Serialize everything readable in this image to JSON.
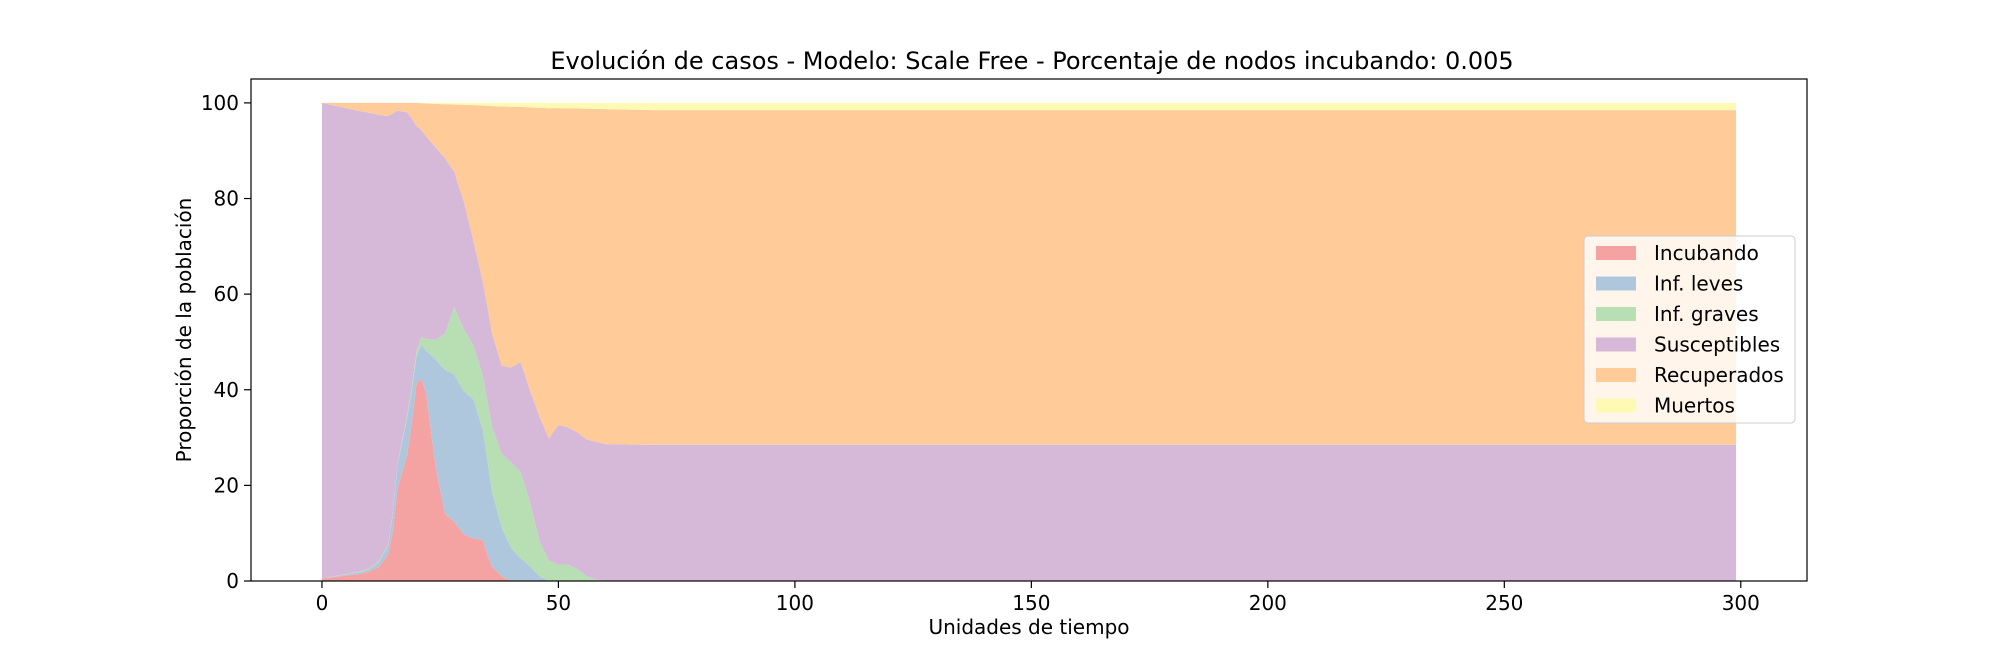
{
  "chart_data": {
    "type": "area",
    "stacked": true,
    "title": "Evolución de casos - Modelo: Scale Free - Porcentaje de nodos incubando: 0.005",
    "xlabel": "Unidades de tiempo",
    "ylabel": "Proporción de la población",
    "xlim": [
      -15,
      314
    ],
    "ylim": [
      0,
      105
    ],
    "xticks": [
      0,
      50,
      100,
      150,
      200,
      250,
      300
    ],
    "yticks": [
      0,
      20,
      40,
      60,
      80,
      100
    ],
    "x_end": 299,
    "legend_position": "center-right",
    "colors": {
      "Incubando": "#f4a2a2",
      "Inf. leves": "#afc7dd",
      "Inf. graves": "#b8dfb4",
      "Susceptibles": "#d6b8d9",
      "Recuperados": "#ffcb99",
      "Muertos": "#fffab3"
    },
    "series": [
      {
        "name": "Incubando",
        "x": [
          0,
          4,
          8,
          10,
          12,
          14,
          15,
          16,
          18,
          20,
          21,
          22,
          24,
          26,
          28,
          30,
          32,
          34,
          35,
          36,
          38,
          40
        ],
        "values": [
          0.5,
          1,
          1.5,
          2,
          3,
          6,
          12,
          24,
          33,
          43,
          45,
          40,
          24,
          15,
          14,
          12,
          11,
          10,
          6,
          3,
          1,
          0
        ]
      },
      {
        "name": "Inf. leves",
        "x": [
          0,
          10,
          12,
          14,
          16,
          18,
          20,
          22,
          24,
          26,
          28,
          30,
          32,
          34,
          36,
          38,
          40,
          42,
          44,
          46,
          48
        ],
        "values": [
          0,
          0.5,
          1,
          2,
          6,
          10,
          6,
          9,
          22,
          32,
          35,
          37,
          36,
          27,
          16,
          10,
          7,
          5,
          3,
          1,
          0
        ]
      },
      {
        "name": "Inf. graves",
        "x": [
          0,
          16,
          20,
          24,
          26,
          28,
          30,
          32,
          34,
          36,
          38,
          40,
          42,
          44,
          46,
          48,
          50,
          52,
          54,
          56,
          58,
          60
        ],
        "values": [
          0,
          0.3,
          1,
          4,
          8,
          16,
          16,
          14,
          13,
          14,
          15,
          18,
          19,
          13,
          7,
          4,
          3.5,
          3.5,
          2.5,
          1,
          0.3,
          0
        ]
      },
      {
        "name": "Susceptibles",
        "x": [
          0,
          14,
          16,
          18,
          20,
          22,
          24,
          26,
          28,
          30,
          32,
          34,
          36,
          38,
          40,
          42,
          44,
          46,
          48,
          50,
          52,
          54,
          56,
          58,
          60,
          65,
          70,
          299
        ],
        "values": [
          99.5,
          97,
          91,
          80,
          49,
          43,
          40,
          39,
          32,
          33,
          27,
          23,
          20,
          18,
          20,
          24,
          23,
          25,
          24,
          29.5,
          29,
          28.7,
          28.5,
          28.8,
          28.6,
          28.5,
          28.5,
          28.5
        ]
      },
      {
        "name": "Recuperados",
        "x": [
          0,
          14,
          16,
          18,
          20,
          22,
          24,
          26,
          28,
          30,
          32,
          34,
          36,
          38,
          40,
          42,
          44,
          46,
          48,
          50,
          52,
          54,
          56,
          58,
          60,
          65,
          70,
          299
        ],
        "values": [
          0,
          3,
          2,
          2.5,
          5,
          7,
          9,
          12,
          16,
          25,
          35,
          43,
          49,
          53,
          55,
          56,
          58,
          62,
          65,
          67,
          67.5,
          68,
          69,
          69.6,
          70,
          70,
          70,
          70
        ]
      },
      {
        "name": "Muertos",
        "x": [
          0,
          20,
          30,
          40,
          50,
          60,
          70,
          299
        ],
        "values": [
          0,
          0,
          0.5,
          0.8,
          1.1,
          1.3,
          1.5,
          1.5
        ]
      }
    ]
  }
}
